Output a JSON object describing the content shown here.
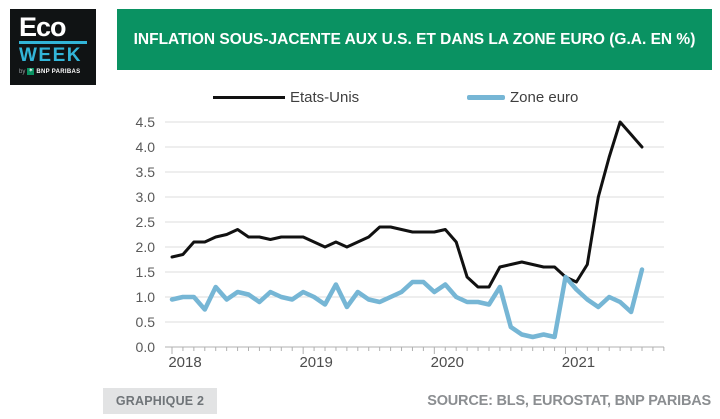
{
  "logo": {
    "line1": "Eco",
    "line2": "WEEK",
    "byline_by": "by",
    "byline_brand": "BNP PARIBAS"
  },
  "banner": {
    "title": "INFLATION SOUS-JACENTE AUX U.S. ET DANS LA ZONE EURO (G.A. EN %)",
    "bg_color": "#0a9262",
    "text_color": "#ffffff"
  },
  "footer": {
    "figure_label": "GRAPHIQUE 2",
    "source": "SOURCE: BLS, EUROSTAT, BNP PARIBAS"
  },
  "chart_data": {
    "type": "line",
    "title": "Inflation sous-jacente aux U.S. et dans la zone euro (g.a. en %)",
    "x_start": "2018-01",
    "x_frequency": "monthly",
    "x_tick_labels": [
      "2018",
      "2019",
      "2020",
      "2021"
    ],
    "y_tick_labels": [
      "0.0",
      "0.5",
      "1.0",
      "1.5",
      "2.0",
      "2.5",
      "3.0",
      "3.5",
      "4.0",
      "4.5"
    ],
    "ylim": [
      0,
      4.5
    ],
    "grid": true,
    "legend_position": "top",
    "series": [
      {
        "name": "Etats-Unis",
        "color": "#111111",
        "values": [
          1.8,
          1.85,
          2.1,
          2.1,
          2.2,
          2.25,
          2.35,
          2.2,
          2.2,
          2.15,
          2.2,
          2.2,
          2.2,
          2.1,
          2.0,
          2.1,
          2.0,
          2.1,
          2.2,
          2.4,
          2.4,
          2.35,
          2.3,
          2.3,
          2.3,
          2.35,
          2.1,
          1.4,
          1.2,
          1.2,
          1.6,
          1.65,
          1.7,
          1.65,
          1.6,
          1.6,
          1.4,
          1.3,
          1.65,
          3.0,
          3.8,
          4.5,
          4.25,
          4.0
        ]
      },
      {
        "name": "Zone euro",
        "color": "#76b6d5",
        "values": [
          0.95,
          1.0,
          1.0,
          0.75,
          1.2,
          0.95,
          1.1,
          1.05,
          0.9,
          1.1,
          1.0,
          0.95,
          1.1,
          1.0,
          0.85,
          1.25,
          0.8,
          1.1,
          0.95,
          0.9,
          1.0,
          1.1,
          1.3,
          1.3,
          1.1,
          1.25,
          1.0,
          0.9,
          0.9,
          0.85,
          1.2,
          0.4,
          0.25,
          0.2,
          0.25,
          0.2,
          1.4,
          1.15,
          0.95,
          0.8,
          1.0,
          0.9,
          0.7,
          1.55
        ]
      }
    ]
  }
}
